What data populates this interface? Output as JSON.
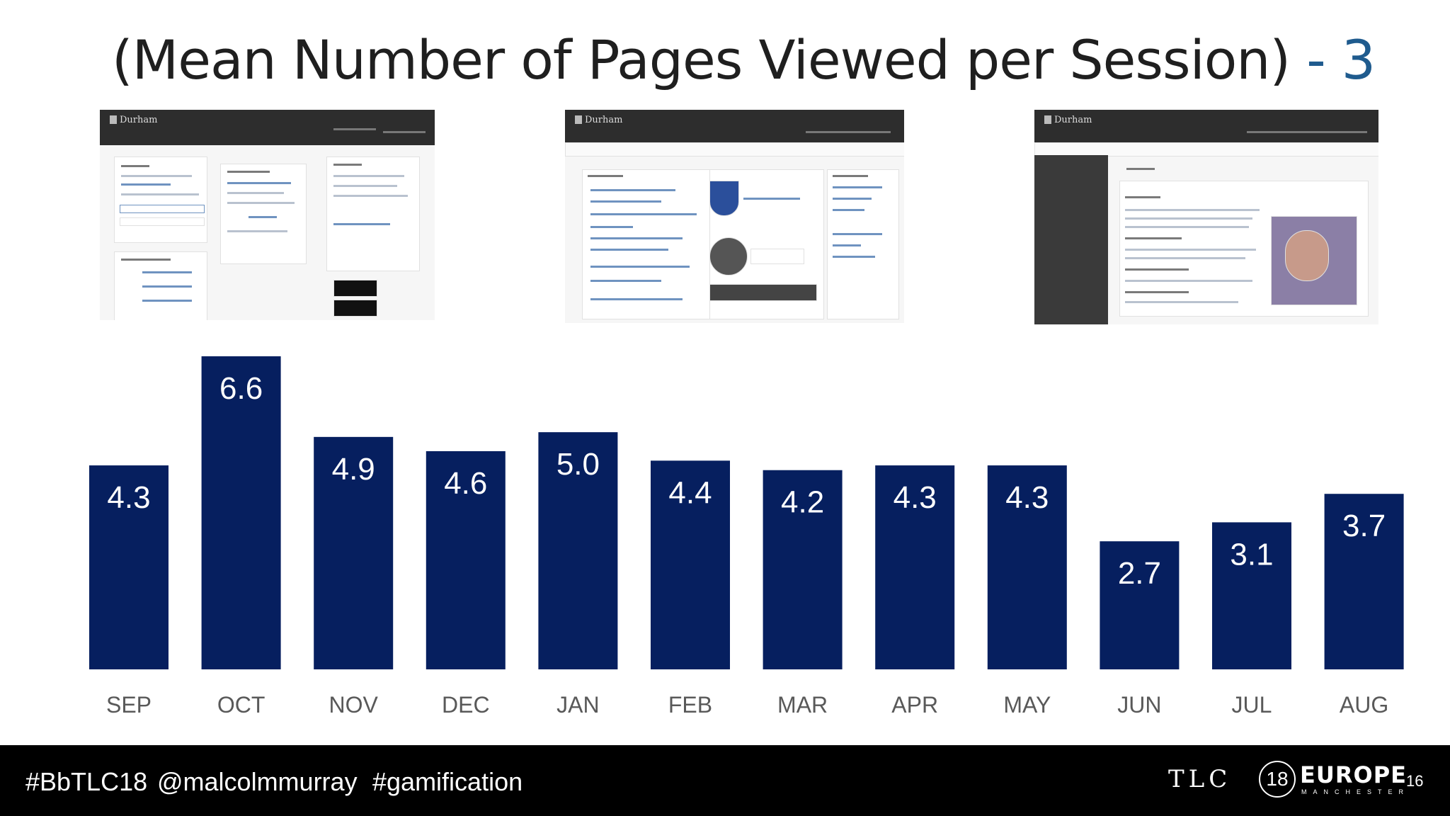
{
  "slide": {
    "title_main": "(Mean Number of Pages Viewed per Session)",
    "title_accent": "- 3",
    "page_number": "16"
  },
  "footer": {
    "hashtag_event": "#BbTLC18",
    "handle": "@malcolmmurray",
    "hashtag_topic": "#gamification",
    "logo": {
      "tlc": "TLC",
      "year": "18",
      "region": "EUROPE",
      "city": "MANCHESTER"
    }
  },
  "screenshots": [
    {
      "name": "Durham Blackboard login page",
      "logo_text": "Durham"
    },
    {
      "name": "Durham Blackboard home page",
      "logo_text": "Durham"
    },
    {
      "name": "Durham course welcome page",
      "logo_text": "Durham"
    }
  ],
  "chart_data": {
    "type": "bar",
    "categories": [
      "SEP",
      "OCT",
      "NOV",
      "DEC",
      "JAN",
      "FEB",
      "MAR",
      "APR",
      "MAY",
      "JUN",
      "JUL",
      "AUG"
    ],
    "values": [
      4.3,
      6.6,
      4.9,
      4.6,
      5.0,
      4.4,
      4.2,
      4.3,
      4.3,
      2.7,
      3.1,
      3.7
    ],
    "data_labels": [
      "4.3",
      "6.6",
      "4.9",
      "4.6",
      "5.0",
      "4.4",
      "4.2",
      "4.3",
      "4.3",
      "2.7",
      "3.1",
      "3.7"
    ],
    "title": "",
    "xlabel": "",
    "ylabel": "",
    "ylim": [
      0,
      6.6
    ],
    "grid": false,
    "legend": "none",
    "bar_color": "#061f5f",
    "label_color": "#ffffff",
    "tick_label_color": "#595959"
  }
}
